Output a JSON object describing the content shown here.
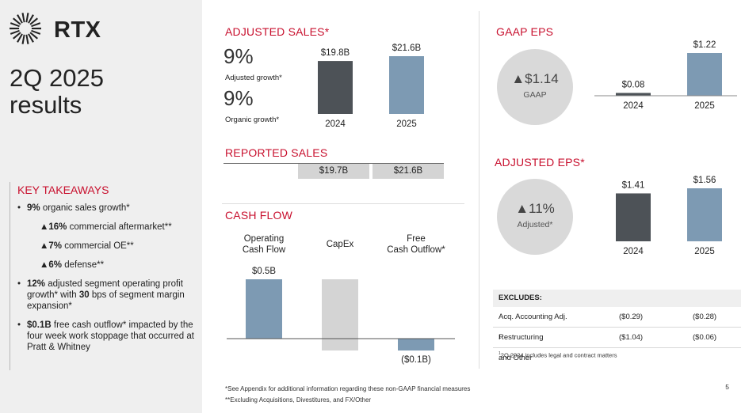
{
  "brand": {
    "logo_text": "RTX",
    "accent": "#c8102e",
    "bar_dark": "#4d5257",
    "bar_blue": "#7d9ab3",
    "bar_gray": "#d4d4d4"
  },
  "title": "2Q 2025\nresults",
  "takeaways": {
    "title": "KEY TAKEAWAYS",
    "b1_bold": "9%",
    "b1_text": " organic sales growth*",
    "s1_bold": "▲16%",
    "s1_text": " commercial aftermarket**",
    "s2_bold": "▲7%",
    "s2_text": " commercial OE**",
    "s3_bold": "▲6%",
    "s3_text": " defense**",
    "b2_bold1": "12%",
    "b2_text1": " adjusted segment operating profit growth* with ",
    "b2_bold2": "30",
    "b2_text2": " bps of segment margin expansion*",
    "b3_bold": "$0.1B",
    "b3_text": " free cash outflow* impacted by the four week work stoppage that occurred at Pratt & Whitney"
  },
  "adjusted_sales": {
    "title": "ADJUSTED SALES*",
    "adj_growth_value": "9%",
    "adj_growth_label": "Adjusted growth*",
    "org_growth_value": "9%",
    "org_growth_label": "Organic growth*",
    "bars": [
      {
        "year": "2024",
        "label": "$19.8B",
        "value": 19.8
      },
      {
        "year": "2025",
        "label": "$21.6B",
        "value": 21.6
      }
    ]
  },
  "reported_sales": {
    "title": "REPORTED SALES",
    "v2024": "$19.7B",
    "v2025": "$21.6B"
  },
  "cash_flow": {
    "title": "CASH FLOW",
    "bars": [
      {
        "head": "Operating\nCash Flow",
        "label": "$0.5B",
        "value": 0.5
      },
      {
        "head": "CapEx",
        "label": "",
        "value": -0.6
      },
      {
        "head": "Free\nCash Outflow*",
        "label": "($0.1B)",
        "value": -0.1
      }
    ]
  },
  "gaap_eps": {
    "title": "GAAP EPS",
    "circle_value": "▲$1.14",
    "circle_label": "GAAP",
    "bars": [
      {
        "year": "2024",
        "label": "$0.08",
        "value": 0.08
      },
      {
        "year": "2025",
        "label": "$1.22",
        "value": 1.22
      }
    ]
  },
  "adjusted_eps": {
    "title": "ADJUSTED EPS*",
    "circle_value": "▲11%",
    "circle_label": "Adjusted*",
    "bars": [
      {
        "year": "2024",
        "label": "$1.41",
        "value": 1.41
      },
      {
        "year": "2025",
        "label": "$1.56",
        "value": 1.56
      }
    ]
  },
  "excludes": {
    "title": "EXCLUDES:",
    "rows": [
      {
        "label": "Acq. Accounting Adj.",
        "sup": "",
        "v2024": "($0.29)",
        "v2025": "($0.28)"
      },
      {
        "label": "Restructuring and Other",
        "sup": "1",
        "v2024": "($1.04)",
        "v2025": "($0.06)"
      }
    ],
    "footnote_sup": "1",
    "footnote": "2Q 2024 includes legal and contract matters"
  },
  "footnotes": {
    "f1": "*See Appendix for additional information regarding these non-GAAP financial measures",
    "f2": "**Excluding Acquisitions, Divestitures, and FX/Other"
  },
  "page_number": "5"
}
